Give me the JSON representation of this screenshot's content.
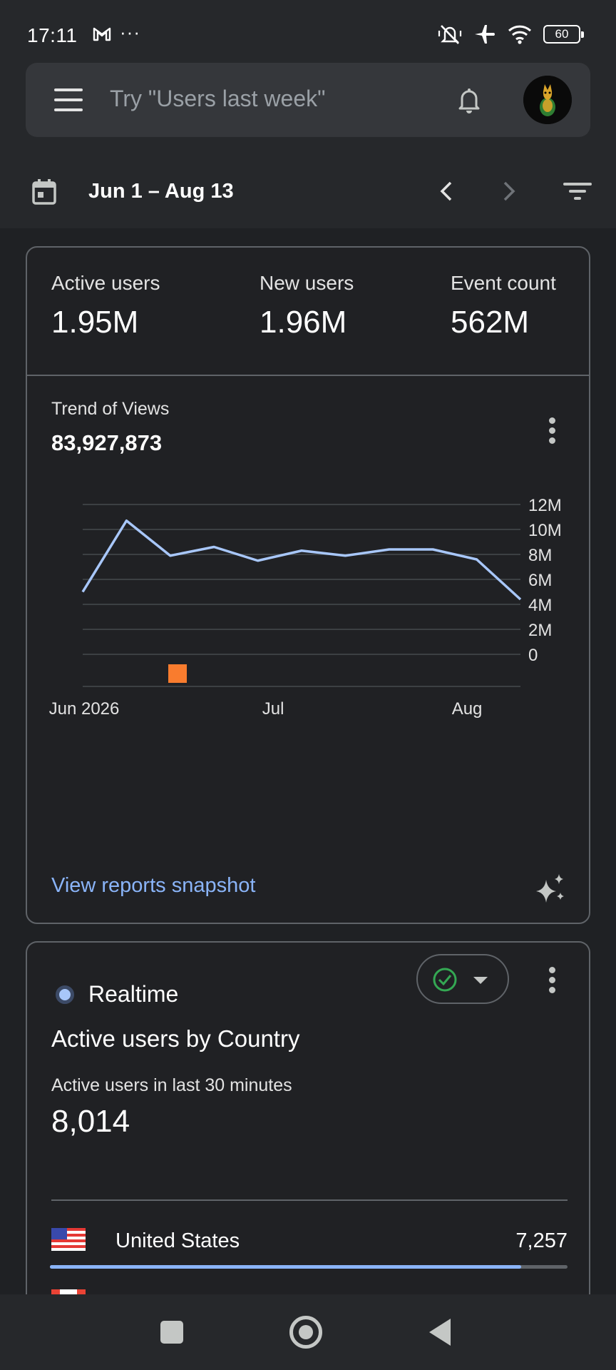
{
  "status_bar": {
    "time": "17:11",
    "more": "···",
    "battery": "60",
    "icons": [
      "gmail-icon",
      "mute-vibrate-icon",
      "airplane-icon",
      "wifi-icon",
      "battery-icon"
    ]
  },
  "header": {
    "search_placeholder": "Try \"Users last week\"",
    "icons": [
      "menu-icon",
      "bell-icon",
      "avatar"
    ]
  },
  "date_bar": {
    "range": "Jun 1 – Aug 13",
    "icons": [
      "calendar-icon",
      "chevron-left-icon",
      "chevron-right-icon",
      "filter-icon"
    ]
  },
  "metrics": [
    {
      "label": "Active users",
      "value": "1.95M"
    },
    {
      "label": "New users",
      "value": "1.96M"
    },
    {
      "label": "Event count",
      "value": "562M"
    }
  ],
  "trend": {
    "title": "Trend of Views",
    "value": "83,927,873",
    "link": "View reports snapshot"
  },
  "chart_data": {
    "type": "line",
    "title": "Trend of Views",
    "x_ticks": [
      "Jun 2026",
      "Jul",
      "Aug"
    ],
    "y_ticks": [
      "12M",
      "10M",
      "8M",
      "6M",
      "4M",
      "2M",
      "0"
    ],
    "ylim": [
      0,
      12000000
    ],
    "grid": true,
    "series": [
      {
        "color": "#a8c7fa",
        "x": [
          "2026-06-01",
          "2026-06-08",
          "2026-06-15",
          "2026-06-22",
          "2026-06-29",
          "2026-07-06",
          "2026-07-13",
          "2026-07-20",
          "2026-07-27",
          "2026-08-03",
          "2026-08-10"
        ],
        "y": [
          5000000,
          10700000,
          7900000,
          8600000,
          7500000,
          8300000,
          7900000,
          8400000,
          8400000,
          7600000,
          4400000
        ]
      }
    ],
    "annotation_color": "#f97c2e"
  },
  "realtime": {
    "label": "Realtime",
    "title": "Active users by Country",
    "subtitle": "Active users in last 30 minutes",
    "count": "8,014",
    "rows": [
      {
        "country": "United States",
        "value": "7,257",
        "share": 0.91
      }
    ]
  }
}
